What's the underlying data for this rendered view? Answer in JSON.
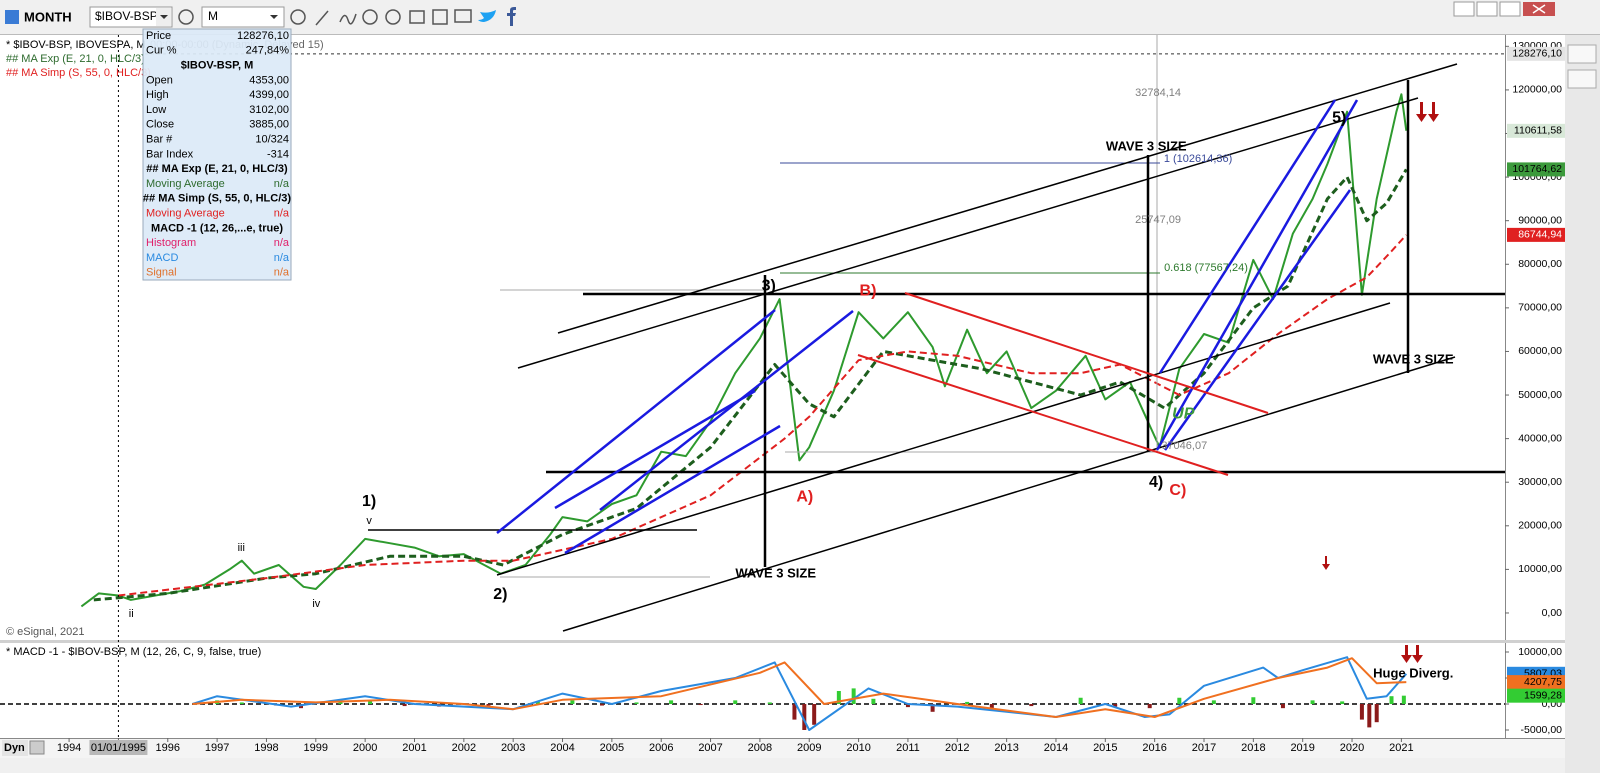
{
  "toolbar": {
    "period": "MONTH",
    "symbol": "$IBOV-BSP",
    "interval": "M"
  },
  "chart_header": {
    "symbol_line": "* $IBOV-BSP, IBOVESPA, M",
    "session": "00:00-00:00 (Dynamic, Delayed 15)",
    "ma_exp": "## MA Exp (E, 21, 0, HLC/3)",
    "ma_simp": "## MA Simp (S, 55, 0, HLC/3)",
    "copyright": "© eSignal, 2021"
  },
  "data_window": {
    "rows": [
      {
        "label": "Price",
        "value": "128276,10",
        "color": "#000000"
      },
      {
        "label": "Cur %",
        "value": "247,84%",
        "color": "#000000"
      },
      {
        "label": "$IBOV-BSP, M",
        "header": true,
        "color": "#000000"
      },
      {
        "label": "Open",
        "value": "4353,00",
        "color": "#000000"
      },
      {
        "label": "High",
        "value": "4399,00",
        "color": "#000000"
      },
      {
        "label": "Low",
        "value": "3102,00",
        "color": "#000000"
      },
      {
        "label": "Close",
        "value": "3885,00",
        "color": "#000000"
      },
      {
        "label": "Bar #",
        "value": "10/324",
        "color": "#000000"
      },
      {
        "label": "Bar Index",
        "value": "-314",
        "color": "#000000"
      },
      {
        "label": "## MA Exp (E, 21, 0, HLC/3)",
        "header": true,
        "color": "#000000"
      },
      {
        "label": "Moving Average",
        "value": "n/a",
        "color": "#2e6b2e"
      },
      {
        "label": "## MA Simp (S, 55, 0, HLC/3)",
        "header": true,
        "color": "#000000"
      },
      {
        "label": "Moving Average",
        "value": "n/a",
        "color": "#e02020"
      },
      {
        "label": "MACD -1 (12, 26,...e, true)",
        "header": true,
        "color": "#000000"
      },
      {
        "label": "Histogram",
        "value": "n/a",
        "color": "#e0206a"
      },
      {
        "label": "MACD",
        "value": "n/a",
        "color": "#2a8ae0"
      },
      {
        "label": "Signal",
        "value": "n/a",
        "color": "#e0702a"
      }
    ]
  },
  "chart_data": [
    {
      "type": "line",
      "xlim": [
        1992.6,
        2023.1
      ],
      "xticks": [
        1994,
        {
          "value": 1995,
          "label": "01/01/1995"
        },
        1996,
        1997,
        1998,
        1999,
        2000,
        2001,
        2002,
        2003,
        2004,
        2005,
        2006,
        2007,
        2008,
        2009,
        2010,
        2011,
        2012,
        2013,
        2014,
        2015,
        2016,
        2017,
        2018,
        2019,
        2020,
        2021
      ],
      "cursor_x": 1995,
      "ylim": [
        -6200,
        132600
      ],
      "yticks": [
        {
          "value": 0,
          "label": "0,00"
        },
        {
          "value": 10000,
          "label": "10000,00"
        },
        {
          "value": 20000,
          "label": "20000,00"
        },
        {
          "value": 30000,
          "label": "30000,00"
        },
        {
          "value": 40000,
          "label": "40000,00"
        },
        {
          "value": 50000,
          "label": "50000,00"
        },
        {
          "value": 60000,
          "label": "60000,00"
        },
        {
          "value": 70000,
          "label": "70000,00"
        },
        {
          "value": 80000,
          "label": "80000,00"
        },
        {
          "value": 90000,
          "label": "90000,00"
        },
        {
          "value": 100000,
          "label": "100000,00"
        },
        {
          "value": 110000,
          "label": "110000,00"
        },
        {
          "value": 120000,
          "label": "120000,00"
        },
        {
          "value": 130000,
          "label": "130000,00"
        }
      ],
      "series": [
        {
          "color": "#2e9a2e",
          "x": [
            1994.25,
            1994.6,
            1995.0,
            1995.25,
            1995.75,
            1996.25,
            1996.75,
            1997.25,
            1997.5,
            1997.75,
            1998.25,
            1998.75,
            1999.0,
            1999.5,
            2000.0,
            2000.5,
            2001.0,
            2001.5,
            2002.0,
            2002.5,
            2002.75,
            2003.25,
            2003.75,
            2004.0,
            2004.5,
            2005.0,
            2005.5,
            2006.0,
            2006.5,
            2007.0,
            2007.5,
            2008.0,
            2008.4,
            2008.8,
            2009.0,
            2009.5,
            2010.0,
            2010.5,
            2011.0,
            2011.5,
            2011.75,
            2012.2,
            2012.6,
            2013.0,
            2013.5,
            2014.0,
            2014.6,
            2015.0,
            2015.5,
            2015.9,
            2016.1,
            2016.5,
            2017.0,
            2017.5,
            2018.0,
            2018.4,
            2018.8,
            2019.2,
            2019.5,
            2019.9,
            2020.2,
            2020.5,
            2020.9,
            2021.0,
            2021.1
          ],
          "values": [
            1500,
            4500,
            4000,
            3000,
            4000,
            5000,
            6500,
            10000,
            12000,
            9000,
            11000,
            6000,
            5500,
            11000,
            17000,
            16000,
            15000,
            13000,
            13500,
            10500,
            9000,
            11000,
            18000,
            22000,
            21000,
            25000,
            27000,
            37000,
            36000,
            44000,
            55000,
            63000,
            72000,
            35000,
            38000,
            51000,
            69000,
            63000,
            69000,
            61000,
            52000,
            65000,
            55000,
            60000,
            47000,
            51000,
            59000,
            49000,
            53000,
            43000,
            38000,
            56000,
            64000,
            62000,
            81000,
            72000,
            87000,
            95000,
            103000,
            115000,
            73000,
            95000,
            115000,
            119000,
            110611.58
          ]
        },
        {
          "color": "#1d5e1d",
          "dashed": true,
          "bold": true,
          "x": [
            1994.5,
            1996,
            1998,
            1999,
            2000.5,
            2002,
            2002.8,
            2004,
            2005.5,
            2007,
            2008.3,
            2009,
            2009.5,
            2010.5,
            2011.5,
            2012.5,
            2013.5,
            2014.5,
            2015.3,
            2016.2,
            2017,
            2018,
            2018.7,
            2019.5,
            2019.9,
            2020.3,
            2020.7,
            2021.1
          ],
          "values": [
            3000,
            4500,
            8000,
            9000,
            13000,
            13000,
            11000,
            18000,
            24000,
            38000,
            57000,
            48000,
            45000,
            60000,
            58000,
            56000,
            53000,
            50000,
            53000,
            47000,
            55000,
            70000,
            75000,
            95000,
            100000,
            90000,
            94000,
            101764.62
          ]
        },
        {
          "color": "#e02020",
          "dashed": true,
          "x": [
            1995,
            1998,
            2000,
            2002,
            2003,
            2005,
            2007,
            2008.5,
            2009,
            2010,
            2011,
            2012,
            2013.5,
            2014.5,
            2015.3,
            2016.5,
            2017.5,
            2018.5,
            2019.5,
            2020.3,
            2020.8,
            2021.1
          ],
          "values": [
            4000,
            8000,
            11000,
            12000,
            12000,
            17000,
            27000,
            40000,
            45000,
            58000,
            60000,
            59000,
            55000,
            55000,
            57000,
            50000,
            55000,
            64000,
            72000,
            77000,
            83000,
            86744.94
          ]
        }
      ],
      "last_labels": [
        {
          "value": 128276.1,
          "label": "128276,10",
          "bg": "#e4e4e4",
          "fg": "#000000",
          "line": true
        },
        {
          "value": 110611.58,
          "label": "110611,58",
          "bg": "#d8e8d8",
          "fg": "#000000"
        },
        {
          "value": 101764.62,
          "label": "101764,62",
          "bg": "#3c9a3c",
          "fg": "#000000"
        },
        {
          "value": 86744.94,
          "label": "86744,94",
          "bg": "#e02020",
          "fg": "#ffffff"
        }
      ],
      "annotations": [
        {
          "text": "1)",
          "x": 2000.08,
          "y": 25460,
          "color": "#000000",
          "style": "label"
        },
        {
          "text": "v",
          "x": 2000.08,
          "y": 21100,
          "color": "#000000",
          "style": "note"
        },
        {
          "text": "iii",
          "x": 1997.49,
          "y": 14900,
          "color": "#000000",
          "style": "note"
        },
        {
          "text": "iv",
          "x": 1999.01,
          "y": 2060,
          "color": "#000000",
          "style": "note"
        },
        {
          "text": "ii",
          "x": 1995.26,
          "y": -230,
          "color": "#000000",
          "style": "note"
        },
        {
          "text": "2)",
          "x": 2002.74,
          "y": 4130,
          "color": "#000000",
          "style": "label"
        },
        {
          "text": "3)",
          "x": 2008.18,
          "y": 75000,
          "color": "#000000",
          "style": "label"
        },
        {
          "text": "B)",
          "x": 2010.19,
          "y": 73850,
          "color": "#e02020",
          "style": "label"
        },
        {
          "text": "A)",
          "x": 2008.91,
          "y": 26600,
          "color": "#e02020",
          "style": "label"
        },
        {
          "text": "4)",
          "x": 2016.03,
          "y": 29820,
          "color": "#000000",
          "style": "label"
        },
        {
          "text": "C)",
          "x": 2016.47,
          "y": 27980,
          "color": "#e02020",
          "style": "label"
        },
        {
          "text": "5)",
          "x": 2019.74,
          "y": 113530,
          "color": "#000000",
          "style": "label"
        },
        {
          "text": "WAVE 3 SIZE",
          "x": 2008.32,
          "y": 8940,
          "color": "#000000",
          "style": "wave"
        },
        {
          "text": "WAVE 3 SIZE",
          "x": 2015.83,
          "y": 106880,
          "color": "#000000",
          "style": "wave"
        },
        {
          "text": "WAVE 3 SIZE",
          "x": 2021.24,
          "y": 58030,
          "color": "#000000",
          "style": "wave"
        },
        {
          "text": "UP",
          "x": 2016.58,
          "y": 45640,
          "color": "#3c9a3c",
          "style": "up"
        },
        {
          "text": "32784,14",
          "x": 2016.07,
          "y": 119270,
          "color": "#808080",
          "style": "note"
        },
        {
          "text": "1 (102614,36)",
          "x": 2016.88,
          "y": 104130,
          "color": "#3a4a9a",
          "style": "note"
        },
        {
          "text": "25747,09",
          "x": 2016.07,
          "y": 90140,
          "color": "#808080",
          "style": "note"
        },
        {
          "text": "0.618 (77567,24)",
          "x": 2017.04,
          "y": 79130,
          "color": "#2e7a2e",
          "style": "note"
        },
        {
          "text": "37046,07",
          "x": 2016.6,
          "y": 38300,
          "color": "#808080",
          "style": "note"
        }
      ]
    },
    {
      "type": "line",
      "title": "* MACD -1 - $IBOV-BSP, M (12, 26, C, 9, false, true)",
      "xlim": [
        1992.6,
        2023.1
      ],
      "ylim": [
        -6540,
        11730
      ],
      "yticks": [
        {
          "value": 10000,
          "label": "10000,00"
        },
        {
          "value": 5000,
          "label": "5000,00"
        },
        {
          "value": 0,
          "label": "0,00"
        },
        {
          "value": -5000,
          "label": "-5000,00"
        }
      ],
      "zero_line": true,
      "series": [
        {
          "type": "bar",
          "positive_color": "#33cc33",
          "negative_color": "#8b1a1a",
          "x": [
            1997,
            1997.5,
            1998.2,
            1998.7,
            1999.5,
            2000.1,
            2000.8,
            2001.5,
            2002.5,
            2003.5,
            2004.2,
            2004.8,
            2005.5,
            2006.2,
            2006.8,
            2007.5,
            2008.2,
            2008.7,
            2008.9,
            2009.1,
            2009.6,
            2009.9,
            2010.3,
            2011,
            2011.5,
            2012.2,
            2012.7,
            2013.5,
            2014.5,
            2015.2,
            2015.9,
            2016.5,
            2017.2,
            2018,
            2018.6,
            2019.2,
            2019.8,
            2020.2,
            2020.35,
            2020.5,
            2020.8,
            2021.05
          ],
          "values": [
            700,
            300,
            -300,
            -800,
            600,
            500,
            -400,
            -500,
            -300,
            500,
            700,
            -300,
            300,
            700,
            -200,
            700,
            300,
            -3000,
            -5000,
            -4000,
            2500,
            3000,
            1000,
            -600,
            -1500,
            400,
            -800,
            -400,
            1200,
            -500,
            -800,
            1200,
            700,
            1300,
            -800,
            700,
            500,
            -3000,
            -4500,
            -3500,
            1500,
            1599.28
          ]
        },
        {
          "color": "#2a8ae0",
          "x": [
            1996.5,
            1997,
            1998.5,
            2000,
            2001,
            2003,
            2004,
            2005,
            2006,
            2007.5,
            2008.3,
            2009,
            2010.2,
            2011,
            2012,
            2013,
            2014,
            2015,
            2015.8,
            2016.3,
            2017,
            2018.2,
            2018.5,
            2019,
            2019.9,
            2020.3,
            2020.7,
            2021.1
          ],
          "values": [
            0,
            1500,
            -500,
            1500,
            0,
            -1000,
            2000,
            0,
            2500,
            5000,
            8000,
            -5000,
            3000,
            0,
            -500,
            -1500,
            -2500,
            0,
            -2500,
            -2000,
            3500,
            7000,
            5000,
            6500,
            9000,
            1000,
            1500,
            5807.03
          ]
        },
        {
          "color": "#f07020",
          "x": [
            1996.5,
            1997.5,
            1999,
            2000.5,
            2002,
            2003,
            2004,
            2006,
            2008,
            2008.5,
            2009.3,
            2010.5,
            2012,
            2014,
            2015,
            2016,
            2017,
            2018.5,
            2019.5,
            2020.0,
            2020.5,
            2021.1
          ],
          "values": [
            0,
            800,
            300,
            800,
            0,
            -1000,
            800,
            1500,
            6000,
            8000,
            0,
            2000,
            0,
            -2500,
            -1000,
            -2500,
            1000,
            5000,
            7000,
            8800,
            4000,
            4207.75
          ]
        }
      ],
      "last_labels": [
        {
          "value": 5807.03,
          "label": "5807,03",
          "bg": "#2a8ae0",
          "fg": "#000000"
        },
        {
          "value": 4207.75,
          "label": "4207,75",
          "bg": "#f07020",
          "fg": "#000000"
        },
        {
          "value": 1599.28,
          "label": "1599,28",
          "bg": "#33cc33",
          "fg": "#000000"
        }
      ],
      "annotations": [
        {
          "text": "Huge Diverg.",
          "x": 2021.24,
          "y": 5770,
          "color": "#000000",
          "style": "wave"
        }
      ]
    }
  ],
  "footer": {
    "mode": "Dyn"
  }
}
